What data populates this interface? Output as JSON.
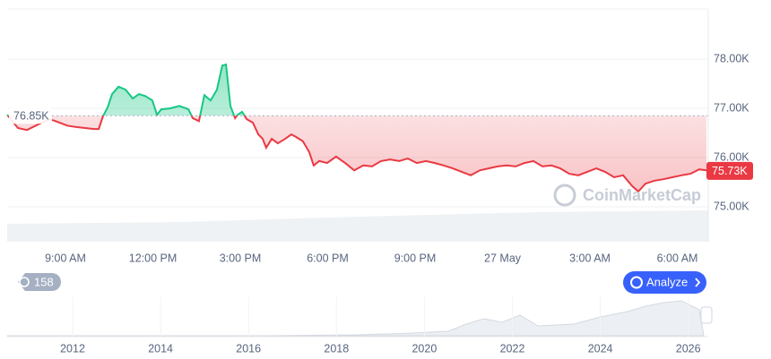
{
  "chart_data": {
    "type": "line",
    "x": [
      7.0,
      7.37,
      7.68,
      7.98,
      8.45,
      8.66,
      9.06,
      9.37,
      9.68,
      9.98,
      10.14,
      10.29,
      10.45,
      10.6,
      10.82,
      11.06,
      11.31,
      11.52,
      11.74,
      11.98,
      12.14,
      12.29,
      12.6,
      12.91,
      13.22,
      13.37,
      13.58,
      13.77,
      13.98,
      14.2,
      14.38,
      14.51,
      14.66,
      14.82,
      14.91,
      15.06,
      15.22,
      15.43,
      15.62,
      15.77,
      15.89,
      16.08,
      16.29,
      16.54,
      16.75,
      16.91,
      17.15,
      17.37,
      17.52,
      17.71,
      17.98,
      18.29,
      18.6,
      18.91,
      19.22,
      19.52,
      19.83,
      20.14,
      20.45,
      20.75,
      21.06,
      21.37,
      21.68,
      21.98,
      22.29,
      22.6,
      22.91,
      23.22,
      23.52,
      23.83,
      24.14,
      24.45,
      24.75,
      25.06,
      25.37,
      25.68,
      25.98,
      26.29,
      26.6,
      26.91,
      27.22,
      27.52,
      27.83,
      28.14,
      28.45,
      28.66,
      28.91,
      29.22,
      29.52,
      29.83,
      30.14,
      30.45,
      30.75,
      31.0
    ],
    "values": [
      76870,
      76600,
      76560,
      76650,
      76780,
      76740,
      76650,
      76620,
      76600,
      76580,
      76580,
      76840,
      77020,
      77290,
      77440,
      77380,
      77200,
      77290,
      77250,
      77160,
      76870,
      76980,
      77000,
      77050,
      76980,
      76800,
      76740,
      77270,
      77160,
      77380,
      77870,
      77890,
      77050,
      76800,
      76870,
      76930,
      76780,
      76710,
      76470,
      76380,
      76200,
      76380,
      76290,
      76380,
      76470,
      76420,
      76330,
      76110,
      75840,
      75930,
      75890,
      76020,
      75890,
      75740,
      75840,
      75820,
      75930,
      75960,
      75930,
      75980,
      75890,
      75930,
      75890,
      75840,
      75780,
      75710,
      75640,
      75740,
      75780,
      75820,
      75840,
      75820,
      75890,
      75930,
      75820,
      75840,
      75780,
      75670,
      75640,
      75710,
      75780,
      75710,
      75600,
      75640,
      75420,
      75310,
      75470,
      75530,
      75560,
      75600,
      75640,
      75670,
      75760,
      75740
    ],
    "color_up": "#16c784",
    "color_down": "#ea3943",
    "xlim": [
      7,
      31.06
    ],
    "xticks": [
      {
        "value": 9,
        "label": "9:00 AM"
      },
      {
        "value": 12,
        "label": "12:00 PM"
      },
      {
        "value": 15,
        "label": "3:00 PM"
      },
      {
        "value": 18,
        "label": "6:00 PM"
      },
      {
        "value": 21,
        "label": "9:00 PM"
      },
      {
        "value": 24,
        "label": "27 May"
      },
      {
        "value": 27,
        "label": "3:00 AM"
      },
      {
        "value": 30,
        "label": "6:00 AM"
      }
    ],
    "ylim": [
      74290,
      79020
    ],
    "yticks": [
      {
        "value": 75000,
        "label": "75.00K"
      },
      {
        "value": 76000,
        "label": "76.00K"
      },
      {
        "value": 77000,
        "label": "77.00K"
      },
      {
        "value": 78000,
        "label": "78.00K"
      }
    ],
    "grid": true,
    "reference_line": {
      "value": 76850,
      "label": "76.85K"
    },
    "current_price": {
      "value": 75730,
      "label": "75.73K"
    }
  },
  "navigator": {
    "years": [
      "2012",
      "2014",
      "2016",
      "2018",
      "2020",
      "2022",
      "2024",
      "2026"
    ]
  },
  "controls": {
    "history_badge": "158",
    "analyze_button": "Analyze"
  },
  "watermark": "CoinMarketCap"
}
